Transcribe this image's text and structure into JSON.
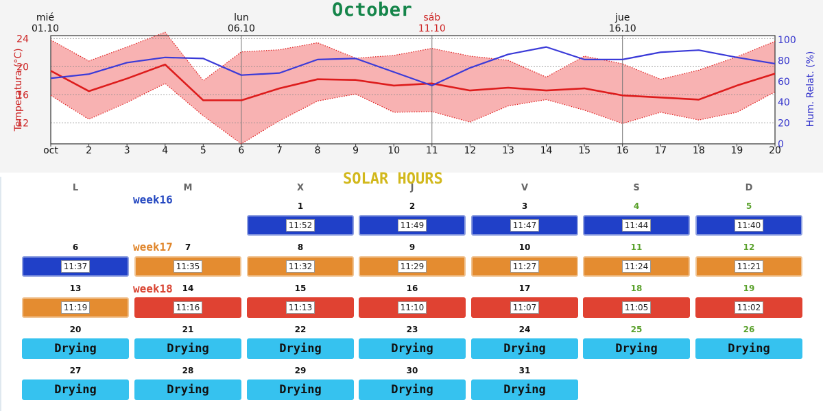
{
  "title": "October",
  "chart_data": {
    "type": "line",
    "x": [
      1,
      2,
      3,
      4,
      5,
      6,
      7,
      8,
      9,
      10,
      11,
      12,
      13,
      14,
      15,
      16,
      17,
      18,
      19,
      20
    ],
    "x_tick_labels": [
      "oct",
      "2",
      "3",
      "4",
      "5",
      "6",
      "7",
      "8",
      "9",
      "10",
      "11",
      "12",
      "13",
      "14",
      "15",
      "16",
      "17",
      "18",
      "19",
      "20"
    ],
    "xlim": [
      1,
      20
    ],
    "top_date_labels": [
      {
        "x": 1,
        "day": "mié",
        "date": "01.10",
        "color": "#111111"
      },
      {
        "x": 6,
        "day": "lun",
        "date": "06.10",
        "color": "#111111"
      },
      {
        "x": 11,
        "day": "sáb",
        "date": "11.10",
        "color": "#cc2222"
      },
      {
        "x": 16,
        "day": "jue",
        "date": "16.10",
        "color": "#111111"
      }
    ],
    "ylabel": "Temperatura (°C)",
    "ylim": [
      9,
      25
    ],
    "yticks": [
      12,
      16,
      20,
      24
    ],
    "y2label": "Hum. Relat. (%)",
    "y2lim": [
      0,
      100
    ],
    "y2ticks": [
      0,
      20,
      40,
      60,
      80,
      100
    ],
    "grid": true,
    "series": [
      {
        "role": "temp_max",
        "axis": "y",
        "color": "#e02020",
        "style": "dotted",
        "values": [
          23.8,
          20.8,
          22.8,
          24.9,
          18.0,
          22.1,
          22.4,
          23.4,
          21.2,
          21.6,
          22.6,
          21.5,
          20.9,
          18.5,
          21.5,
          20.4,
          18.2,
          19.5,
          21.4,
          23.6
        ]
      },
      {
        "role": "temp_min",
        "axis": "y",
        "color": "#e02020",
        "style": "dotted",
        "values": [
          15.9,
          12.5,
          14.9,
          17.6,
          13.0,
          9.0,
          12.3,
          15.1,
          16.1,
          13.5,
          13.6,
          12.1,
          14.4,
          15.3,
          13.8,
          11.9,
          13.5,
          12.4,
          13.5,
          16.4
        ]
      },
      {
        "role": "temp_mean",
        "axis": "y",
        "color": "#dd1c1c",
        "style": "solid",
        "values": [
          19.4,
          16.5,
          18.3,
          20.3,
          15.2,
          15.2,
          16.9,
          18.2,
          18.1,
          17.3,
          17.6,
          16.6,
          17.0,
          16.6,
          16.9,
          15.9,
          15.6,
          15.3,
          17.3,
          19.0
        ]
      },
      {
        "role": "humidity",
        "axis": "y2",
        "color": "#3a3ad8",
        "style": "solid",
        "values": [
          63,
          67,
          78,
          83,
          82,
          66,
          68,
          81,
          82,
          69,
          56,
          73,
          86,
          93,
          81,
          81,
          88,
          90,
          83,
          77
        ]
      }
    ],
    "band_color": "#f8b2b2"
  },
  "solar": {
    "title": "SOLAR HOURS",
    "days_of_week": [
      "L",
      "M",
      "X",
      "J",
      "V",
      "S",
      "D"
    ],
    "weeks": [
      {
        "label": "week16",
        "color": "#2246c0"
      },
      {
        "label": "week17",
        "color": "#e0852a"
      },
      {
        "label": "week18",
        "color": "#d94432"
      }
    ],
    "rows": [
      [
        null,
        null,
        {
          "day": "1",
          "time": "11:52",
          "kind": "w16"
        },
        {
          "day": "2",
          "time": "11:49",
          "kind": "w16"
        },
        {
          "day": "3",
          "time": "11:47",
          "kind": "w16"
        },
        {
          "day": "4",
          "time": "11:44",
          "kind": "w16",
          "weekend": true
        },
        {
          "day": "5",
          "time": "11:40",
          "kind": "w16",
          "weekend": true
        }
      ],
      [
        {
          "day": "6",
          "time": "11:37",
          "kind": "w16"
        },
        {
          "day": "7",
          "time": "11:35",
          "kind": "w17"
        },
        {
          "day": "8",
          "time": "11:32",
          "kind": "w17"
        },
        {
          "day": "9",
          "time": "11:29",
          "kind": "w17"
        },
        {
          "day": "10",
          "time": "11:27",
          "kind": "w17"
        },
        {
          "day": "11",
          "time": "11:24",
          "kind": "w17",
          "weekend": true
        },
        {
          "day": "12",
          "time": "11:21",
          "kind": "w17",
          "weekend": true
        }
      ],
      [
        {
          "day": "13",
          "time": "11:19",
          "kind": "w17"
        },
        {
          "day": "14",
          "time": "11:16",
          "kind": "w18"
        },
        {
          "day": "15",
          "time": "11:13",
          "kind": "w18"
        },
        {
          "day": "16",
          "time": "11:10",
          "kind": "w18"
        },
        {
          "day": "17",
          "time": "11:07",
          "kind": "w18"
        },
        {
          "day": "18",
          "time": "11:05",
          "kind": "w18",
          "weekend": true
        },
        {
          "day": "19",
          "time": "11:02",
          "kind": "w18",
          "weekend": true
        }
      ],
      [
        {
          "day": "20",
          "text": "Drying",
          "kind": "dry"
        },
        {
          "day": "21",
          "text": "Drying",
          "kind": "dry"
        },
        {
          "day": "22",
          "text": "Drying",
          "kind": "dry"
        },
        {
          "day": "23",
          "text": "Drying",
          "kind": "dry"
        },
        {
          "day": "24",
          "text": "Drying",
          "kind": "dry"
        },
        {
          "day": "25",
          "text": "Drying",
          "kind": "dry",
          "weekend": true
        },
        {
          "day": "26",
          "text": "Drying",
          "kind": "dry",
          "weekend": true
        }
      ],
      [
        {
          "day": "27",
          "text": "Drying",
          "kind": "dry"
        },
        {
          "day": "28",
          "text": "Drying",
          "kind": "dry"
        },
        {
          "day": "29",
          "text": "Drying",
          "kind": "dry"
        },
        {
          "day": "30",
          "text": "Drying",
          "kind": "dry"
        },
        {
          "day": "31",
          "text": "Drying",
          "kind": "dry"
        },
        null,
        null
      ]
    ]
  }
}
